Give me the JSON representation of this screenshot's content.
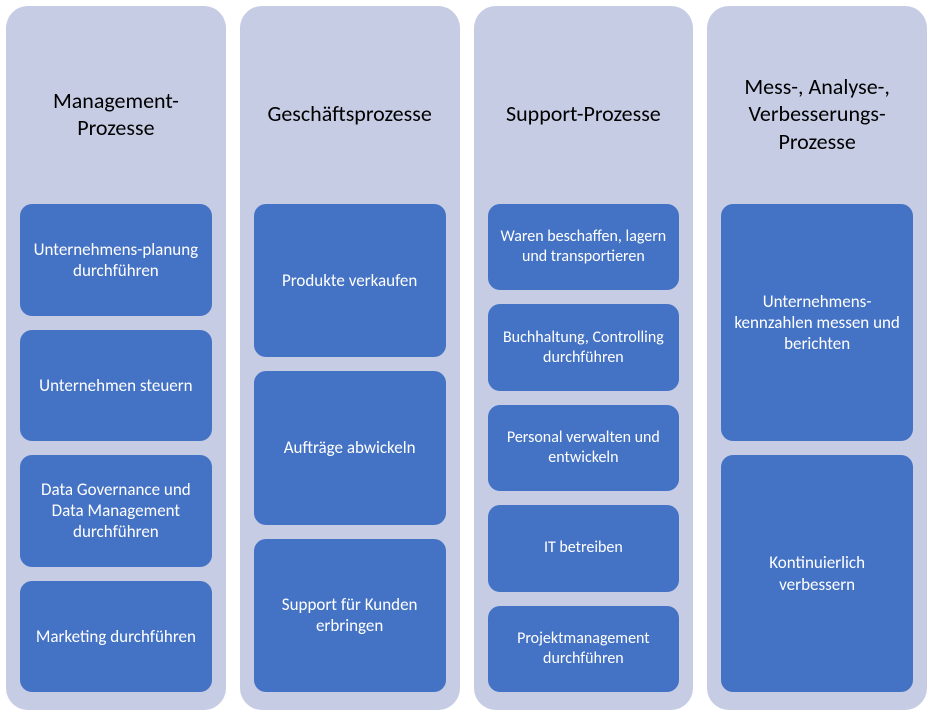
{
  "diagram": {
    "type": "infographic",
    "layout": "columns",
    "background_color": "#ffffff",
    "column_background": "#c6cce4",
    "item_background": "#4472c4",
    "item_text_color": "#ffffff",
    "title_text_color": "#000000",
    "column_border_radius": 22,
    "item_border_radius": 12,
    "title_fontsize": 22,
    "item_fontsize": 17,
    "columns": [
      {
        "title": "Management-Prozesse",
        "items": [
          "Unternehmens-planung durchführen",
          "Unternehmen steuern",
          "Data Governance und Data Management durchführen",
          "Marketing durchführen"
        ]
      },
      {
        "title": "Geschäftsprozesse",
        "items": [
          "Produkte verkaufen",
          "Aufträge abwickeln",
          "Support für Kunden erbringen"
        ]
      },
      {
        "title": "Support-Prozesse",
        "items": [
          "Waren beschaffen, lagern und transportieren",
          "Buchhaltung, Controlling durchführen",
          "Personal verwalten und entwickeln",
          "IT betreiben",
          "Projektmanagement durchführen"
        ]
      },
      {
        "title": "Mess-, Analyse-, Verbesserungs-Prozesse",
        "items": [
          "Unternehmens-kennzahlen messen und berichten",
          "Kontinuierlich verbessern"
        ]
      }
    ]
  }
}
